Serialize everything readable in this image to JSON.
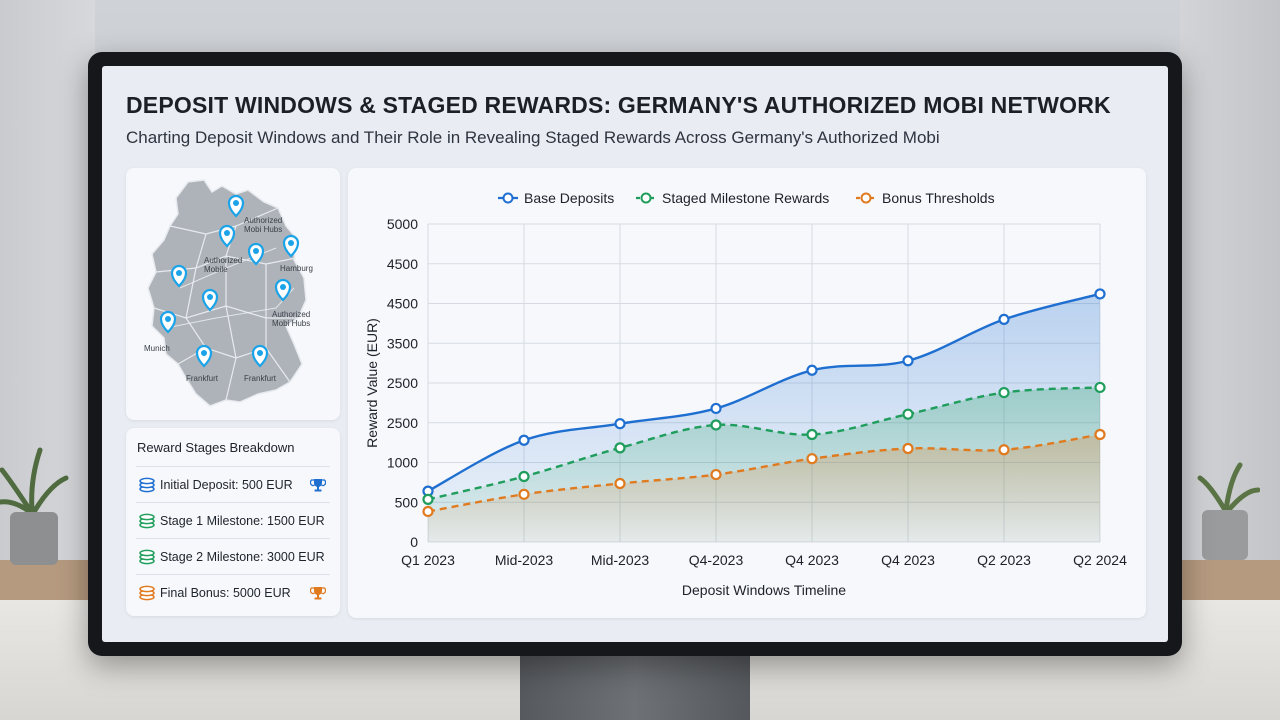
{
  "title": "DEPOSIT WINDOWS & STAGED REWARDS: GERMANY'S AUTHORIZED MOBI NETWORK",
  "subtitle": "Charting Deposit Windows and Their Role in Revealing Staged Rewards Across Germany's Authorized Mobi",
  "map": {
    "labels": [
      "Authorized Mobi Hubs",
      "Authorized Mobile",
      "Hamburg",
      "Authorized Mobi Hubs",
      "Munich",
      "Frankfurt",
      "Frankfurt"
    ],
    "pin_color": "#1aa3e8"
  },
  "stages": {
    "title": "Reward Stages Breakdown",
    "items": [
      {
        "label": "Initial Deposit: 500 EUR",
        "color": "#1f6fd1",
        "icon": "coin-stack-icon",
        "trophy": "trophy-icon",
        "trophy_color": "#1f6fd1"
      },
      {
        "label": "Stage 1 Milestone: 1500 EUR",
        "color": "#1f9d5c",
        "icon": "coin-stack-icon",
        "trophy": "",
        "trophy_color": ""
      },
      {
        "label": "Stage 2 Milestone: 3000 EUR",
        "color": "#1f9d5c",
        "icon": "coin-stack-icon",
        "trophy": "",
        "trophy_color": ""
      },
      {
        "label": "Final Bonus: 5000 EUR",
        "color": "#e07a1f",
        "icon": "coin-stack-icon",
        "trophy": "trophy-icon",
        "trophy_color": "#e07a1f"
      }
    ]
  },
  "chart_data": {
    "type": "area",
    "xlabel": "Deposit Windows Timeline",
    "ylabel": "Reward Value (EUR)",
    "categories": [
      "Q1 2023",
      "Mid-2023",
      "Mid-2023",
      "Q4-2023",
      "Q4 2023",
      "Q4 2023",
      "Q2 2023",
      "Q2 2024"
    ],
    "y_ticks": [
      "0",
      "500",
      "1000",
      "2500",
      "2500",
      "3500",
      "4500",
      "4500",
      "5000"
    ],
    "ylim": [
      0,
      5000
    ],
    "grid": true,
    "legend_position": "top",
    "series": [
      {
        "name": "Base Deposits",
        "color": "#1f6fd1",
        "dashed": false,
        "values": [
          800,
          1600,
          1860,
          2100,
          2700,
          2850,
          3500,
          3900
        ]
      },
      {
        "name": "Staged Milestone Rewards",
        "color": "#1f9d5c",
        "dashed": true,
        "values": [
          670,
          1030,
          1480,
          1840,
          1690,
          2010,
          2350,
          2430
        ]
      },
      {
        "name": "Bonus Thresholds",
        "color": "#e07a1f",
        "dashed": true,
        "values": [
          480,
          750,
          920,
          1060,
          1310,
          1470,
          1450,
          1690
        ]
      }
    ]
  }
}
